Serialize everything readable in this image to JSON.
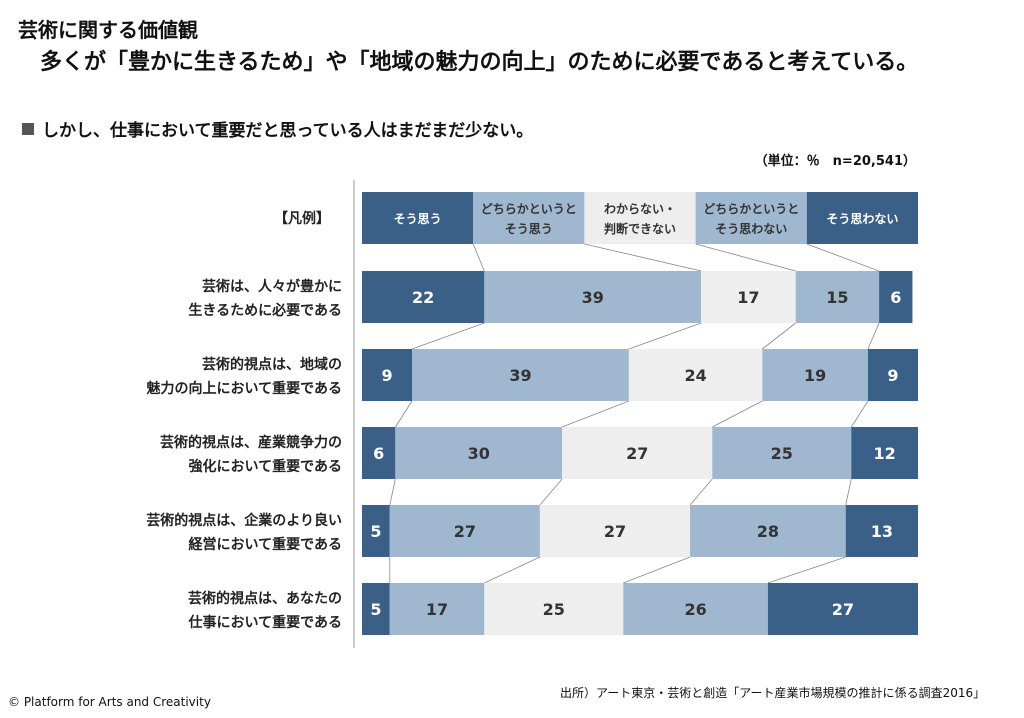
{
  "header": {
    "title_line1": "芸術に関する価値観",
    "title_line2": "多くが「豊かに生きるため」や「地域の魅力の向上」のために必要であると考えている。",
    "subtitle": "しかし、仕事において重要だと思っている人はまだまだ少ない。",
    "unit_note": "（単位：％　n=20,541）"
  },
  "footer": {
    "copyright": "© Platform for Arts and Creativity",
    "source": "出所）アート東京・芸術と創造「アート産業市場規模の推計に係る調査2016」"
  },
  "colors": {
    "dark": "#3b6088",
    "mid": "#9fb8cf",
    "light": "#eeeeee",
    "white_text": "#ffffff",
    "dark_text": "#333333"
  },
  "chart_data": {
    "type": "bar",
    "stacked": true,
    "orientation": "horizontal",
    "percent_scale": [
      0,
      100
    ],
    "legend_title": "【凡例】",
    "legend": [
      {
        "label_lines": [
          "そう思う"
        ],
        "color": "dark"
      },
      {
        "label_lines": [
          "どちらかというと",
          "そう思う"
        ],
        "color": "mid"
      },
      {
        "label_lines": [
          "わからない・",
          "判断できない"
        ],
        "color": "light"
      },
      {
        "label_lines": [
          "どちらかというと",
          "そう思わない"
        ],
        "color": "mid"
      },
      {
        "label_lines": [
          "そう思わない"
        ],
        "color": "dark"
      }
    ],
    "categories": [
      [
        "芸術は、人々が豊かに",
        "生きるために必要である"
      ],
      [
        "芸術的視点は、地域の",
        "魅力の向上において重要である"
      ],
      [
        "芸術的視点は、産業競争力の",
        "強化において重要である"
      ],
      [
        "芸術的視点は、企業のより良い",
        "経営において重要である"
      ],
      [
        "芸術的視点は、あなたの",
        "仕事において重要である"
      ]
    ],
    "series": [
      {
        "name": "そう思う",
        "values": [
          22,
          9,
          6,
          5,
          5
        ]
      },
      {
        "name": "どちらかというとそう思う",
        "values": [
          39,
          39,
          30,
          27,
          17
        ]
      },
      {
        "name": "わからない・判断できない",
        "values": [
          17,
          24,
          27,
          27,
          25
        ]
      },
      {
        "name": "どちらかというとそう思わない",
        "values": [
          15,
          19,
          25,
          28,
          26
        ]
      },
      {
        "name": "そう思わない",
        "values": [
          6,
          9,
          12,
          13,
          27
        ]
      }
    ]
  }
}
